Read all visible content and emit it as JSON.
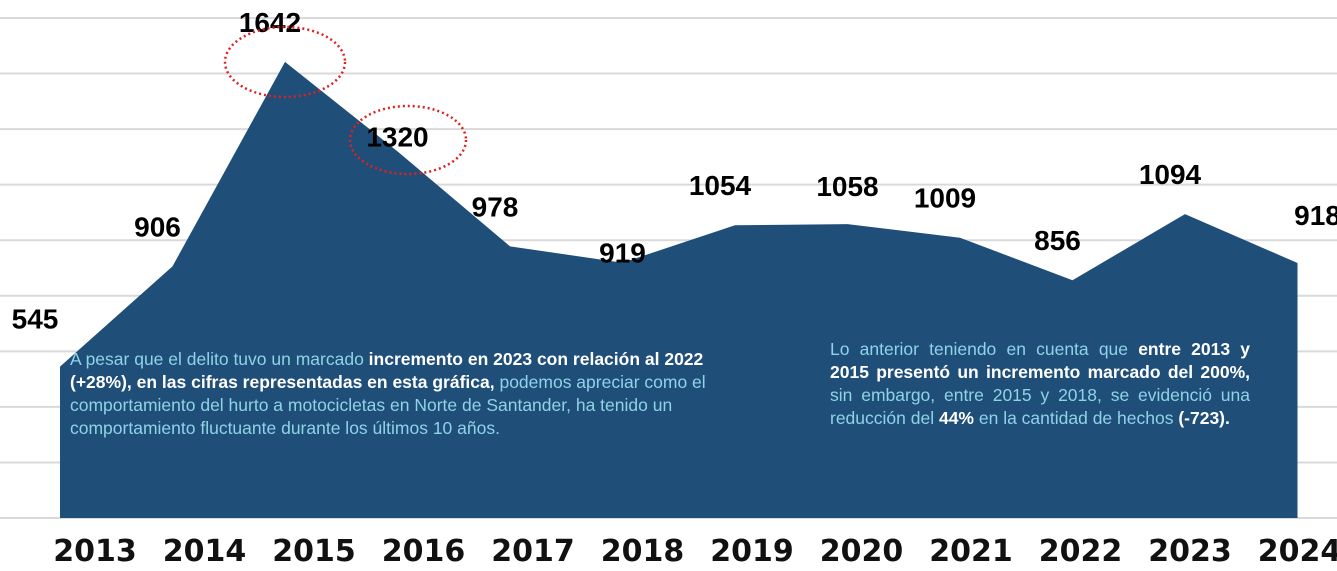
{
  "chart_data": {
    "type": "area",
    "color": "#1f4e79",
    "grid": true,
    "categories": [
      "2013",
      "2014",
      "2015",
      "2016",
      "2017",
      "2018",
      "2019",
      "2020",
      "2021",
      "2022",
      "2023",
      "2024"
    ],
    "values": [
      545,
      906,
      1642,
      1320,
      978,
      919,
      1054,
      1058,
      1009,
      856,
      1094,
      918
    ],
    "ylim": [
      0,
      1800
    ],
    "yticks": [
      0,
      200,
      400,
      600,
      800,
      1000,
      1200,
      1400,
      1600,
      1800
    ],
    "annotations": [
      {
        "segments": [
          {
            "text": "A pesar que el delito tuvo un marcado ",
            "bold": false
          },
          {
            "text": "incremento en 2023 con relación al 2022 (+28%), en las cifras representadas en esta gráfica,",
            "bold": true
          },
          {
            "text": " podemos apreciar como el comportamiento del hurto a motocicletas en Norte de Santander, ha tenido un comportamiento fluctuante durante los últimos 10 años.",
            "bold": false
          }
        ]
      },
      {
        "segments": [
          {
            "text": "Lo anterior teniendo en cuenta que ",
            "bold": false
          },
          {
            "text": "entre 2013 y 2015 presentó un incremento marcado del 200%,",
            "bold": true
          },
          {
            "text": " sin embargo, entre 2015 y 2018, se evidenció una reducción del ",
            "bold": false
          },
          {
            "text": "44%",
            "bold": true
          },
          {
            "text": " en la cantidad de hechos ",
            "bold": false
          },
          {
            "text": "(-723).",
            "bold": true
          }
        ]
      }
    ]
  }
}
